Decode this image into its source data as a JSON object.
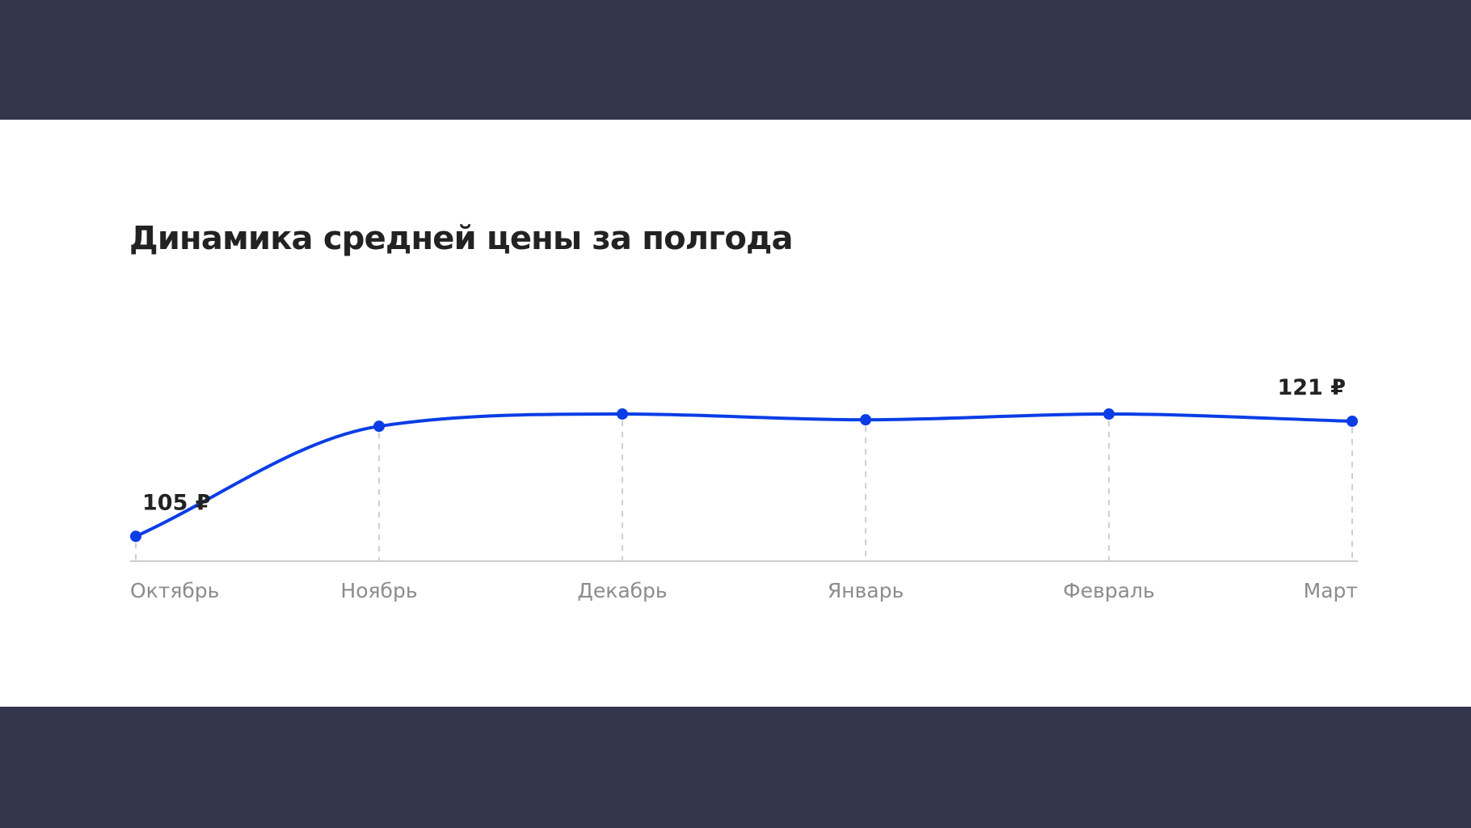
{
  "colors": {
    "background": "#34364b",
    "card": "#ffffff",
    "line": "#0a3de6",
    "axis": "#cccccc",
    "gridline": "#cfcfcf",
    "tick_text": "#8c8c8c",
    "title_text": "#222222"
  },
  "chart_data": {
    "type": "line",
    "title": "Динамика средней цены за полгода",
    "categories": [
      "Октябрь",
      "Ноябрь",
      "Декабрь",
      "Январь",
      "Февраль",
      "Март"
    ],
    "series": [
      {
        "values": [
          105,
          120.3,
          122,
          121.2,
          122,
          121
        ]
      }
    ],
    "data_labels": [
      {
        "index": 0,
        "text": "105 ₽"
      },
      {
        "index": 5,
        "text": "121 ₽"
      }
    ],
    "curve": "smooth",
    "grid": "vertical dashed gridlines at each category",
    "legend": "none",
    "ylim": [
      102,
      126.5
    ]
  }
}
